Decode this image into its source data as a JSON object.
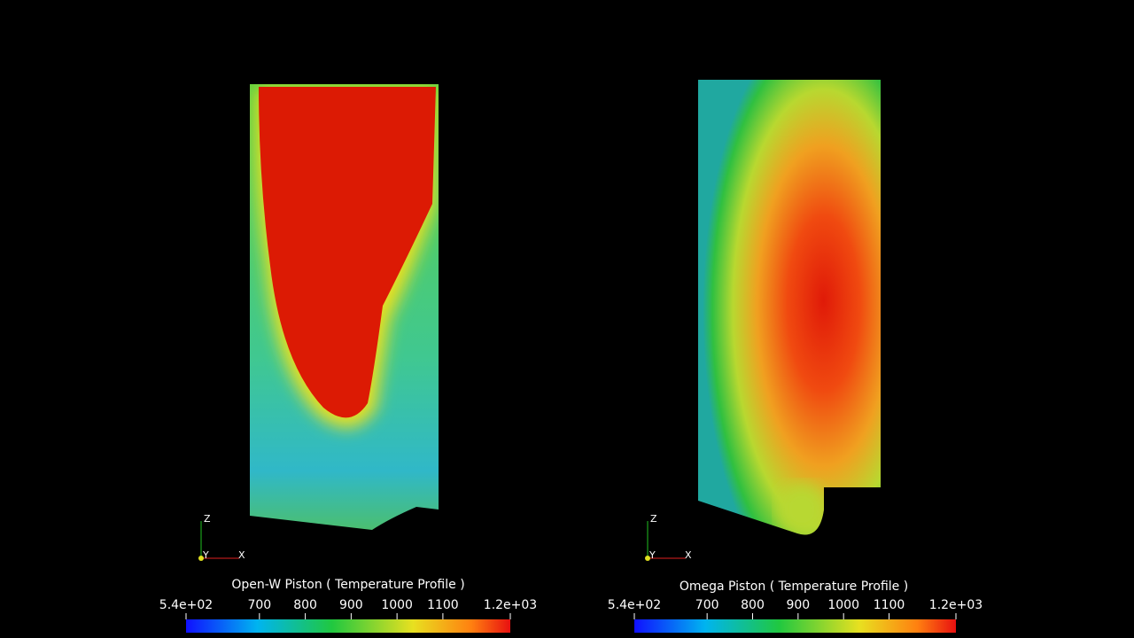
{
  "panels": [
    {
      "title": "Open-W Piston  ( Temperature Profile )",
      "axes": {
        "z": "Z",
        "y": "Y",
        "x": "X"
      },
      "colorbar": {
        "lim": [
          540,
          1247
        ],
        "ticks": [
          {
            "value": 540,
            "label": "5.4e+02"
          },
          700,
          800,
          900,
          1000,
          1100,
          {
            "value": 1247,
            "label": "1.2e+03"
          }
        ]
      }
    },
    {
      "title": "Omega Piston  ( Temperature Profile )",
      "axes": {
        "z": "Z",
        "y": "Y",
        "x": "X"
      },
      "colorbar": {
        "lim": [
          540,
          1247
        ],
        "ticks": [
          {
            "value": 540,
            "label": "5.4e+02"
          },
          700,
          800,
          900,
          1000,
          1100,
          {
            "value": 1247,
            "label": "1.2e+03"
          }
        ]
      }
    }
  ]
}
